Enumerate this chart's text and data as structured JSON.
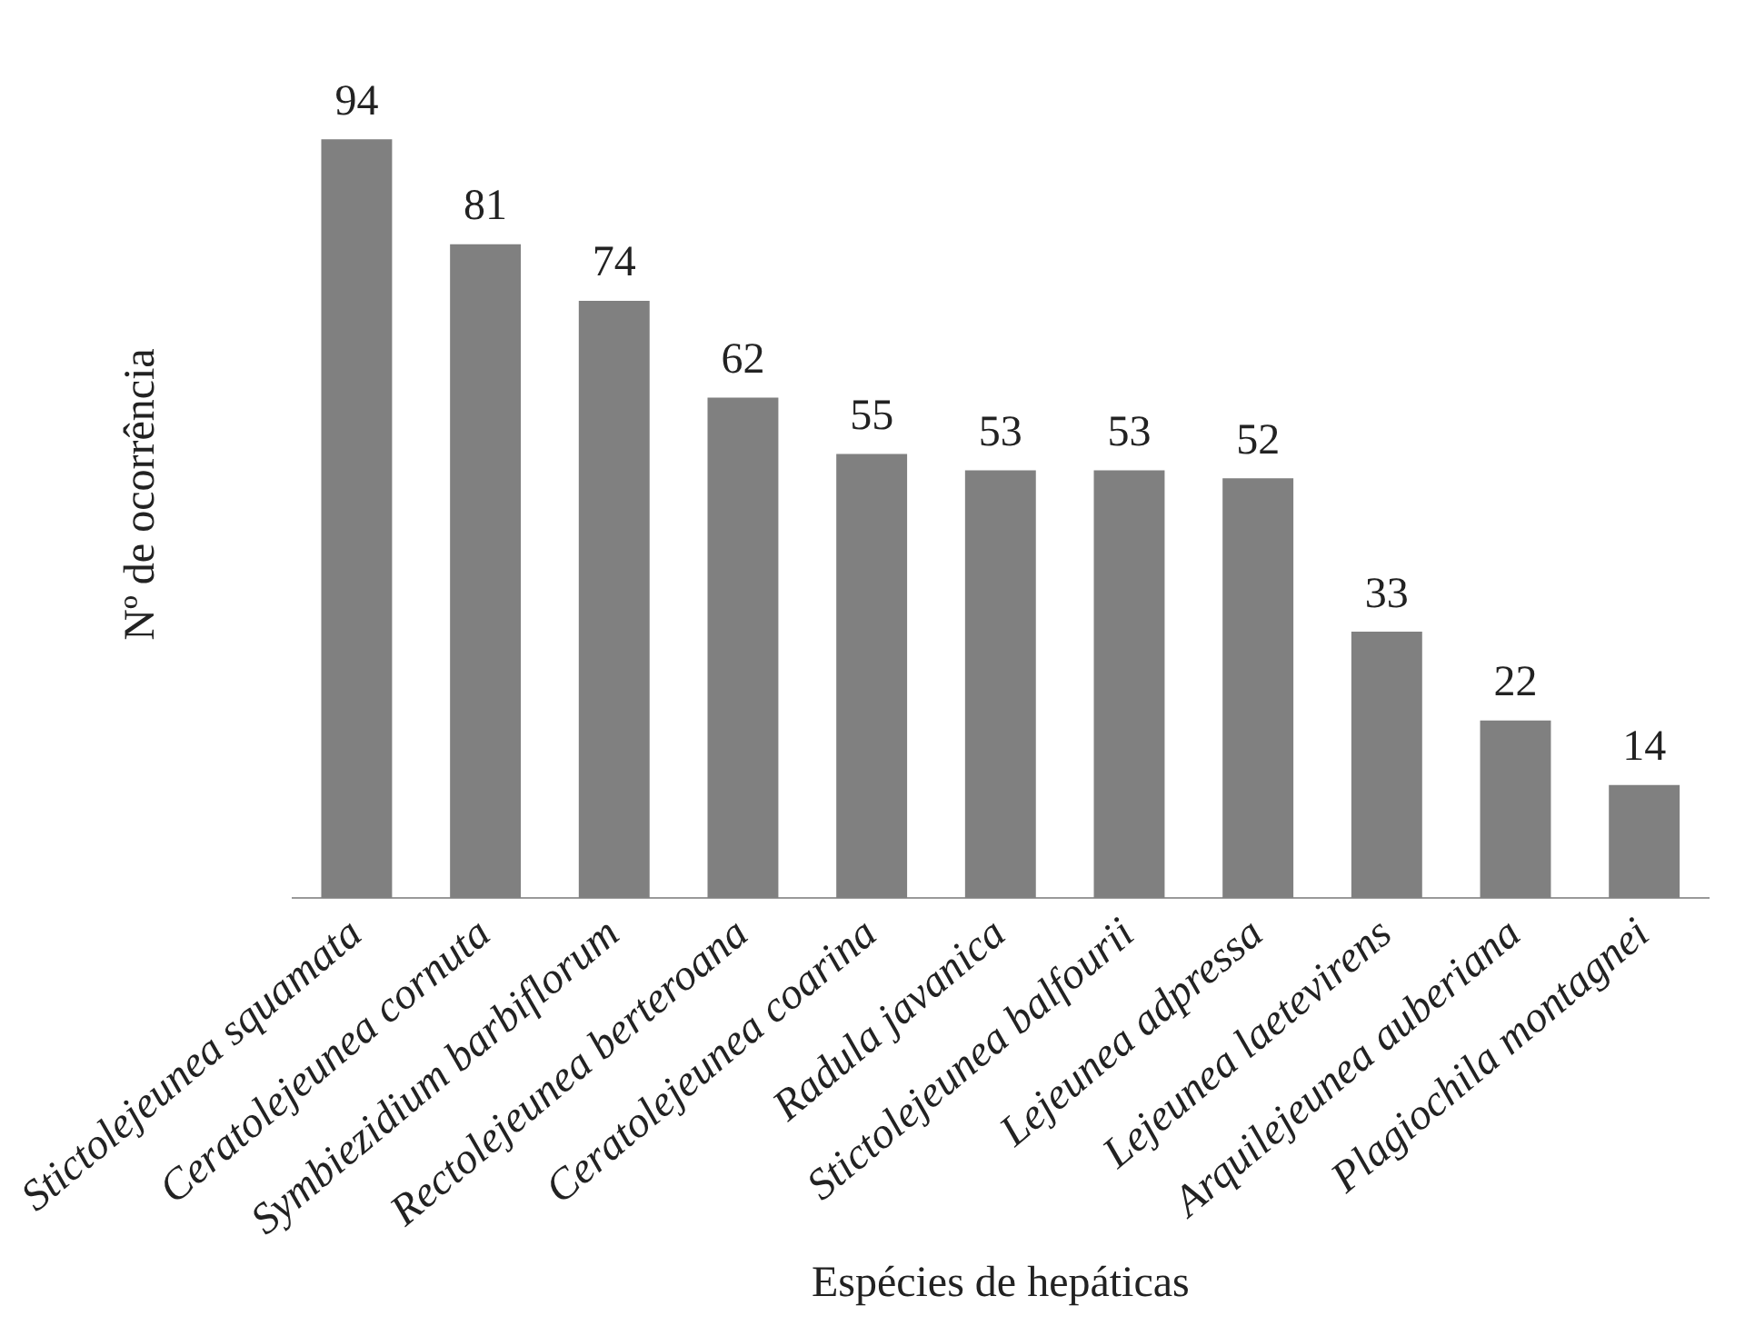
{
  "chart_data": {
    "type": "bar",
    "xlabel": "Espécies de hepáticas",
    "ylabel": "Nº de ocorrência",
    "categories": [
      "Stictolejeunea squamata",
      "Ceratolejeunea cornuta",
      "Symbiezidium barbiflorum",
      "Rectolejeunea berteroana",
      "Ceratolejeunea coarina",
      "Radula javanica",
      "Stictolejeunea balfourii",
      "Lejeunea adpressa",
      "Lejeunea laetevirens",
      "Arquilejeunea auberiana",
      "Plagiochila montagnei"
    ],
    "values": [
      94,
      81,
      74,
      62,
      55,
      53,
      53,
      52,
      33,
      22,
      14
    ],
    "color": "#808080",
    "data_labels": true,
    "grid": false,
    "legend": false,
    "tick_labels": "x"
  }
}
